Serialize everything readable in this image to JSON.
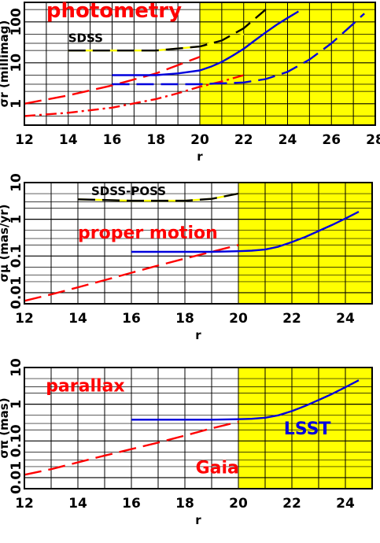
{
  "colors": {
    "shade": "#ffff00",
    "red": "#ff0000",
    "blue": "#0000dd",
    "black": "#000000",
    "grid": "#000000"
  },
  "chart_data": [
    {
      "type": "line",
      "xlabel": "r",
      "ylabel": "σr (millimag)",
      "xlim": [
        12,
        28
      ],
      "ylim": [
        0.3,
        300
      ],
      "yscale": "log",
      "xticks": [
        "12",
        "14",
        "16",
        "18",
        "20",
        "22",
        "24",
        "26",
        "28"
      ],
      "yticks": [
        {
          "v": 1,
          "label": "1"
        },
        {
          "v": 10,
          "label": "10"
        },
        {
          "v": 100,
          "label": "100"
        }
      ],
      "shade_from": 20,
      "annotations": [
        {
          "text": "photometry",
          "x": 13.0,
          "y": 130,
          "color": "red",
          "size": 26
        },
        {
          "text": "SDSS",
          "x": 14.0,
          "y": 32,
          "color": "black",
          "size": 15
        }
      ],
      "series": [
        {
          "color": "yellow",
          "dash": "solid",
          "x": [
            14,
            16,
            18,
            20,
            21,
            22
          ],
          "y": [
            20,
            20,
            20,
            25,
            35,
            50
          ]
        },
        {
          "color": "black",
          "dash": "long",
          "x": [
            14,
            16,
            18,
            20,
            21,
            22,
            23
          ],
          "y": [
            20,
            20,
            20,
            25,
            35,
            70,
            200
          ]
        },
        {
          "color": "red",
          "dash": "long",
          "x": [
            12,
            14,
            16,
            18,
            20
          ],
          "y": [
            1.0,
            1.6,
            2.8,
            5.5,
            14
          ]
        },
        {
          "color": "red",
          "dash": "dashdot",
          "x": [
            12,
            14,
            16,
            18,
            19,
            20,
            21,
            22
          ],
          "y": [
            0.5,
            0.6,
            0.8,
            1.3,
            1.8,
            2.6,
            3.5,
            5
          ]
        },
        {
          "color": "blue",
          "dash": "solid",
          "x": [
            16,
            17,
            18,
            19,
            20,
            20.5,
            21,
            21.5,
            22,
            22.5,
            23,
            23.5,
            24,
            24.5
          ],
          "y": [
            5,
            5,
            5,
            5.5,
            6.5,
            8,
            10.5,
            15,
            22,
            35,
            55,
            85,
            125,
            180
          ]
        },
        {
          "color": "blue",
          "dash": "long",
          "x": [
            16,
            18,
            20,
            22,
            23,
            24,
            25,
            26,
            27,
            27.5
          ],
          "y": [
            3,
            3,
            3,
            3.3,
            4,
            6,
            12,
            30,
            90,
            160
          ]
        }
      ]
    },
    {
      "type": "line",
      "xlabel": "r",
      "ylabel": "σμ (mas/yr)",
      "xlim": [
        12,
        25
      ],
      "ylim": [
        0.005,
        10
      ],
      "yscale": "log",
      "xticks": [
        "12",
        "14",
        "16",
        "18",
        "20",
        "22",
        "24"
      ],
      "yticks": [
        {
          "v": 0.01,
          "label": "0.01"
        },
        {
          "v": 0.1,
          "label": "0.1"
        },
        {
          "v": 1,
          "label": "1"
        },
        {
          "v": 10,
          "label": "10"
        }
      ],
      "shade_from": 20,
      "annotations": [
        {
          "text": "SDSS-POSS",
          "x": 14.5,
          "y": 4.5,
          "color": "black",
          "size": 15
        },
        {
          "text": "proper motion",
          "x": 14.0,
          "y": 0.3,
          "color": "red",
          "size": 22
        }
      ],
      "series": [
        {
          "color": "yellow",
          "dash": "solid",
          "x": [
            14,
            16,
            18,
            19,
            20
          ],
          "y": [
            3.5,
            3.2,
            3.2,
            3.6,
            5
          ]
        },
        {
          "color": "black",
          "dash": "long",
          "x": [
            14,
            16,
            18,
            19,
            20
          ],
          "y": [
            3.5,
            3.2,
            3.2,
            3.6,
            5
          ]
        },
        {
          "color": "red",
          "dash": "long",
          "x": [
            12,
            13,
            14,
            15,
            16,
            17,
            18,
            19,
            20
          ],
          "y": [
            0.006,
            0.009,
            0.014,
            0.022,
            0.035,
            0.055,
            0.085,
            0.13,
            0.2
          ]
        },
        {
          "color": "blue",
          "dash": "solid",
          "x": [
            16,
            17,
            18,
            19,
            20,
            20.5,
            21,
            21.5,
            22,
            22.5,
            23,
            23.5,
            24,
            24.5
          ],
          "y": [
            0.13,
            0.13,
            0.13,
            0.13,
            0.135,
            0.14,
            0.15,
            0.18,
            0.24,
            0.33,
            0.48,
            0.7,
            1.05,
            1.6
          ]
        }
      ]
    },
    {
      "type": "line",
      "xlabel": "r",
      "ylabel": "σπ (mas)",
      "xlim": [
        12,
        25
      ],
      "ylim": [
        0.005,
        10
      ],
      "yscale": "log",
      "xticks": [
        "12",
        "14",
        "16",
        "18",
        "20",
        "22",
        "24"
      ],
      "yticks": [
        {
          "v": 0.01,
          "label": "0.01"
        },
        {
          "v": 0.1,
          "label": "0.10"
        },
        {
          "v": 1,
          "label": "1"
        },
        {
          "v": 10,
          "label": "10"
        }
      ],
      "shade_from": 20,
      "annotations": [
        {
          "text": "parallax",
          "x": 12.8,
          "y": 2.2,
          "color": "red",
          "size": 22
        },
        {
          "text": "LSST",
          "x": 21.7,
          "y": 0.15,
          "color": "blue",
          "size": 22
        },
        {
          "text": "Gaia",
          "x": 18.4,
          "y": 0.013,
          "color": "red",
          "size": 22
        }
      ],
      "series": [
        {
          "color": "red",
          "dash": "long",
          "x": [
            12,
            13,
            14,
            15,
            16,
            17,
            18,
            19,
            20
          ],
          "y": [
            0.012,
            0.017,
            0.026,
            0.04,
            0.06,
            0.09,
            0.14,
            0.22,
            0.33
          ]
        },
        {
          "color": "blue",
          "dash": "solid",
          "x": [
            16,
            17,
            18,
            19,
            20,
            20.5,
            21,
            21.5,
            22,
            22.5,
            23,
            23.5,
            24,
            24.5
          ],
          "y": [
            0.38,
            0.38,
            0.38,
            0.38,
            0.39,
            0.4,
            0.43,
            0.5,
            0.65,
            0.9,
            1.3,
            1.9,
            2.9,
            4.5
          ]
        }
      ]
    }
  ]
}
